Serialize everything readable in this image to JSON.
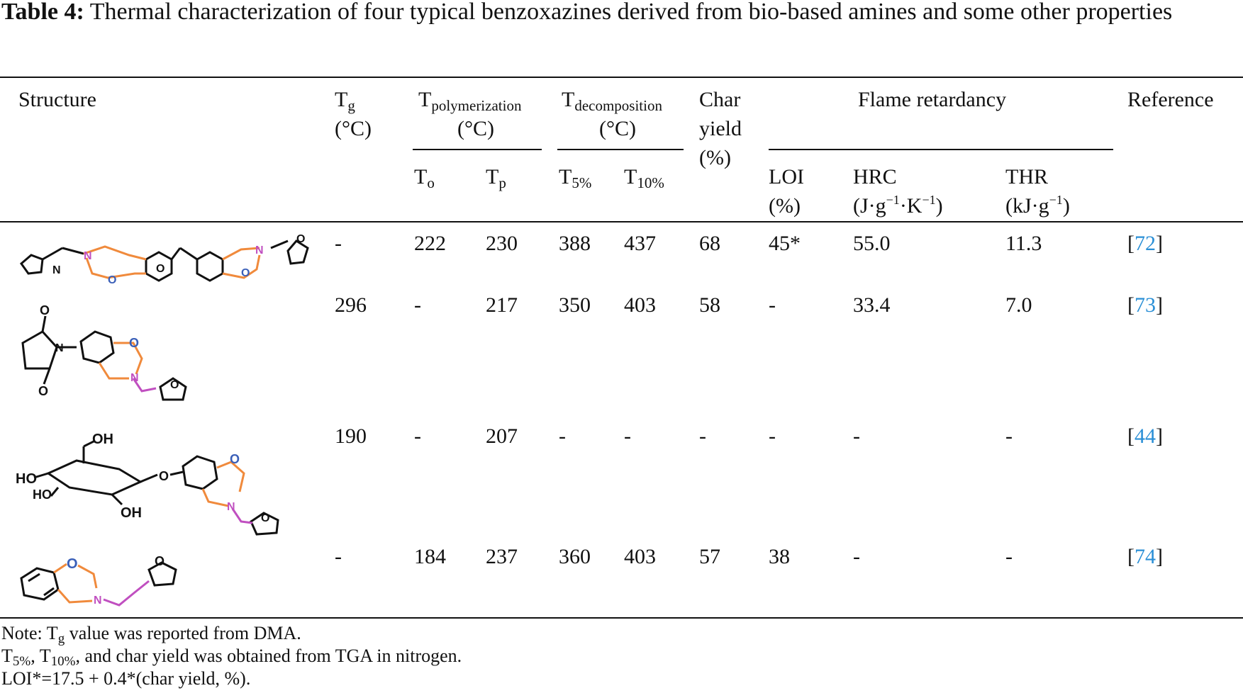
{
  "caption": {
    "label": "Table 4:",
    "text": "Thermal characterization of four typical benzoxazines derived from bio-based amines and some other properties"
  },
  "header": {
    "structure": "Structure",
    "tg": {
      "main": "T",
      "sub": "g",
      "unit": "(°C)"
    },
    "tpoly": {
      "main": "T",
      "sub": "polymerization",
      "unit": "(°C)"
    },
    "tdec": {
      "main": "T",
      "sub": "decomposition",
      "unit": "(°C)"
    },
    "char": {
      "line1": "Char",
      "line2": "yield",
      "line3": "(%)"
    },
    "flame": "Flame retardancy",
    "reference": "Reference",
    "to": {
      "main": "T",
      "sub": "o"
    },
    "tp": {
      "main": "T",
      "sub": "p"
    },
    "t5": {
      "main": "T",
      "sub": "5%"
    },
    "t10": {
      "main": "T",
      "sub": "10%"
    },
    "loi": {
      "line1": "LOI",
      "line2": "(%)"
    },
    "hrc": {
      "line1": "HRC",
      "u1": "(J·g",
      "s1": "−1",
      "u2": "·K",
      "s2": "−1",
      "u3": ")"
    },
    "thr": {
      "line1": "THR",
      "u1": "(kJ·g",
      "s1": "−1",
      "u2": ")"
    }
  },
  "rows": [
    {
      "tg": "-",
      "to": "222",
      "tp": "230",
      "t5": "388",
      "t10": "437",
      "char": "68",
      "loi": "45*",
      "hrc": "55.0",
      "thr": "11.3",
      "ref": "72"
    },
    {
      "tg": "296",
      "to": "-",
      "tp": "217",
      "t5": "350",
      "t10": "403",
      "char": "58",
      "loi": "-",
      "hrc": "33.4",
      "thr": "7.0",
      "ref": "73"
    },
    {
      "tg": "190",
      "to": "-",
      "tp": "207",
      "t5": "-",
      "t10": "-",
      "char": "-",
      "loi": "-",
      "hrc": "-",
      "thr": "-",
      "ref": "44"
    },
    {
      "tg": "-",
      "to": "184",
      "tp": "237",
      "t5": "360",
      "t10": "403",
      "char": "57",
      "loi": "38",
      "hrc": "-",
      "thr": "-",
      "ref": "74"
    }
  ],
  "notes": {
    "line1_pre": "Note: T",
    "line1_sub": "g",
    "line1_post": " value was reported from DMA.",
    "line2_a": "T",
    "line2_a_sub": "5%",
    "line2_b": ", T",
    "line2_b_sub": "10%",
    "line2_post": ", and char yield was obtained from TGA in nitrogen.",
    "line3": "LOI*=17.5 + 0.4*(char yield, %)."
  },
  "colors": {
    "link": "#2a8fd6",
    "oxygen": "#3a5fb8",
    "nitrogen": "#c04fc0",
    "ring": "#f08a3c",
    "bond": "#111111"
  },
  "structures": {
    "s1_labels": [
      "N",
      "N",
      "N",
      "O",
      "O",
      "O",
      "O"
    ],
    "s2_labels": [
      "O",
      "N",
      "O",
      "N",
      "O",
      "O"
    ],
    "s3_labels": [
      "OH",
      "HO",
      "HO",
      "OH",
      "O",
      "O",
      "N",
      "O"
    ],
    "s4_labels": [
      "O",
      "N",
      "O"
    ]
  }
}
